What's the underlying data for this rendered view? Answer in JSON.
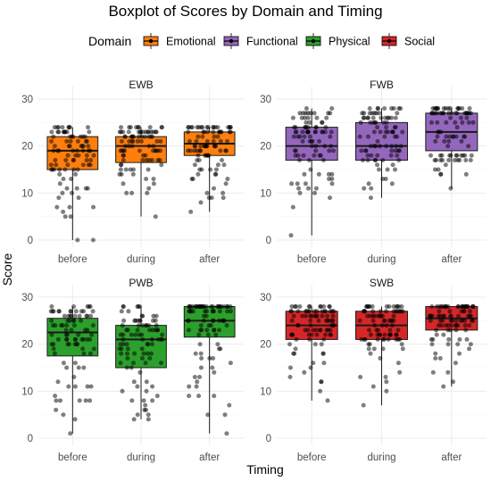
{
  "chart_data": {
    "type": "boxplot",
    "title": "Boxplot of Scores by Domain and Timing",
    "xlabel": "Timing",
    "ylabel": "Score",
    "legend": {
      "title": "Domain",
      "placement": "top",
      "entries": [
        {
          "name": "Emotional",
          "color": "#FF7F0E"
        },
        {
          "name": "Functional",
          "color": "#9467BD"
        },
        {
          "name": "Physical",
          "color": "#2CA02C"
        },
        {
          "name": "Social",
          "color": "#D62728"
        }
      ]
    },
    "categories": [
      "before",
      "during",
      "after"
    ],
    "yticks": [
      0,
      10,
      20,
      30
    ],
    "ylim": [
      0,
      30
    ],
    "grid": true,
    "facets": [
      {
        "label": "EWB",
        "domain": "Emotional",
        "boxes": [
          {
            "timing": "before",
            "min": 0,
            "q1": 15,
            "median": 19,
            "q3": 22,
            "max": 24
          },
          {
            "timing": "during",
            "min": 5,
            "q1": 16.5,
            "median": 20,
            "q3": 22,
            "max": 24
          },
          {
            "timing": "after",
            "min": 6,
            "q1": 18,
            "median": 20.5,
            "q3": 23,
            "max": 24
          }
        ]
      },
      {
        "label": "FWB",
        "domain": "Functional",
        "boxes": [
          {
            "timing": "before",
            "min": 1,
            "q1": 17,
            "median": 20,
            "q3": 24,
            "max": 28
          },
          {
            "timing": "during",
            "min": 9,
            "q1": 17,
            "median": 20,
            "q3": 25,
            "max": 28
          },
          {
            "timing": "after",
            "min": 11,
            "q1": 19,
            "median": 23,
            "q3": 27,
            "max": 28
          }
        ]
      },
      {
        "label": "PWB",
        "domain": "Physical",
        "boxes": [
          {
            "timing": "before",
            "min": 1,
            "q1": 17.5,
            "median": 22.5,
            "q3": 25.5,
            "max": 28
          },
          {
            "timing": "during",
            "min": 4,
            "q1": 15,
            "median": 21,
            "q3": 24,
            "max": 28
          },
          {
            "timing": "after",
            "min": 1,
            "q1": 21.5,
            "median": 25,
            "q3": 28,
            "max": 28
          }
        ]
      },
      {
        "label": "SWB",
        "domain": "Social",
        "boxes": [
          {
            "timing": "before",
            "min": 8,
            "q1": 21,
            "median": 24,
            "q3": 27,
            "max": 28
          },
          {
            "timing": "during",
            "min": 7,
            "q1": 21,
            "median": 24,
            "q3": 27,
            "max": 28
          },
          {
            "timing": "after",
            "min": 11,
            "q1": 23,
            "median": 25.5,
            "q3": 28,
            "max": 28
          }
        ]
      }
    ]
  }
}
